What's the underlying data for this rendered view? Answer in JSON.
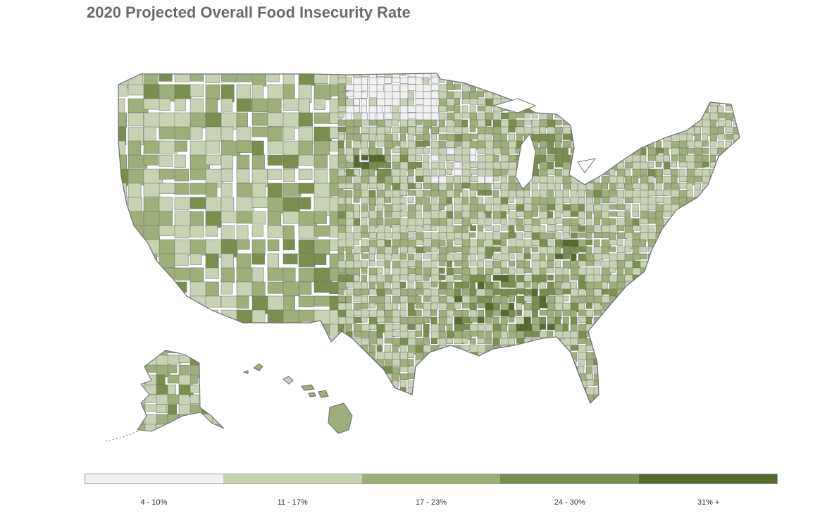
{
  "title": "2020 Projected Overall Food Insecurity Rate",
  "legend": {
    "items": [
      {
        "label": "4 - 10%",
        "color": "#f1f1f1"
      },
      {
        "label": "11 - 17%",
        "color": "#c8d3b4"
      },
      {
        "label": "17 - 23%",
        "color": "#9faf7b"
      },
      {
        "label": "24 - 30%",
        "color": "#7a8f4f"
      },
      {
        "label": "31% +",
        "color": "#566a30"
      }
    ]
  },
  "colors": {
    "border": "#6e6e6e",
    "title": "#6b6b6b",
    "background": "#ffffff"
  }
}
